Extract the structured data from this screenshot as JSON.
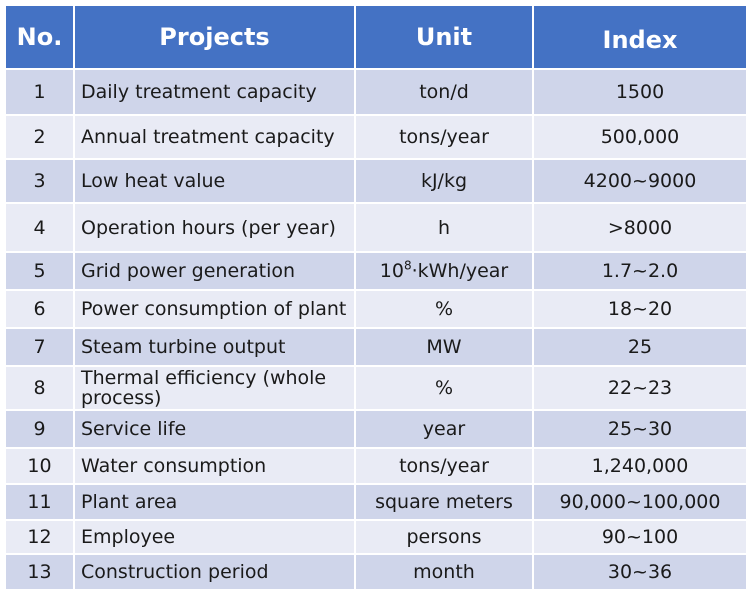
{
  "table": {
    "headers": {
      "no": "No.",
      "projects": "Projects",
      "unit": "Unit",
      "index": "Index"
    },
    "rows": [
      {
        "no": "1",
        "project": "Daily treatment capacity",
        "unit": "ton/d",
        "index": "1500"
      },
      {
        "no": "2",
        "project": "Annual treatment capacity",
        "unit": "tons/year",
        "index": "500,000"
      },
      {
        "no": "3",
        "project": "Low heat value",
        "unit": "kJ/kg",
        "index": "4200~9000"
      },
      {
        "no": "4",
        "project": "Operation hours (per year)",
        "unit": "h",
        "index": ">8000"
      },
      {
        "no": "5",
        "project": "Grid power generation",
        "unit_base": "10",
        "unit_sup": "8",
        "unit_rest": "·kWh/year",
        "index": "1.7~2.0"
      },
      {
        "no": "6",
        "project": "Power consumption of plant",
        "unit": "%",
        "index": "18~20"
      },
      {
        "no": "7",
        "project": "Steam turbine output",
        "unit": "MW",
        "index": "25"
      },
      {
        "no": "8",
        "project": "Thermal efficiency (whole process)",
        "unit": "%",
        "index": "22~23"
      },
      {
        "no": "9",
        "project": "Service life",
        "unit": "year",
        "index": "25~30"
      },
      {
        "no": "10",
        "project": "Water consumption",
        "unit": "tons/year",
        "index": "1,240,000"
      },
      {
        "no": "11",
        "project": "Plant area",
        "unit": "square meters",
        "index": "90,000~100,000"
      },
      {
        "no": "12",
        "project": "Employee",
        "unit": "persons",
        "index": "90~100"
      },
      {
        "no": "13",
        "project": "Construction period",
        "unit": "month",
        "index": "30~36"
      }
    ]
  },
  "colors": {
    "header_bg": "#4472c4",
    "header_text": "#ffffff",
    "row_odd": "#cfd5ea",
    "row_even": "#e9ebf5"
  }
}
